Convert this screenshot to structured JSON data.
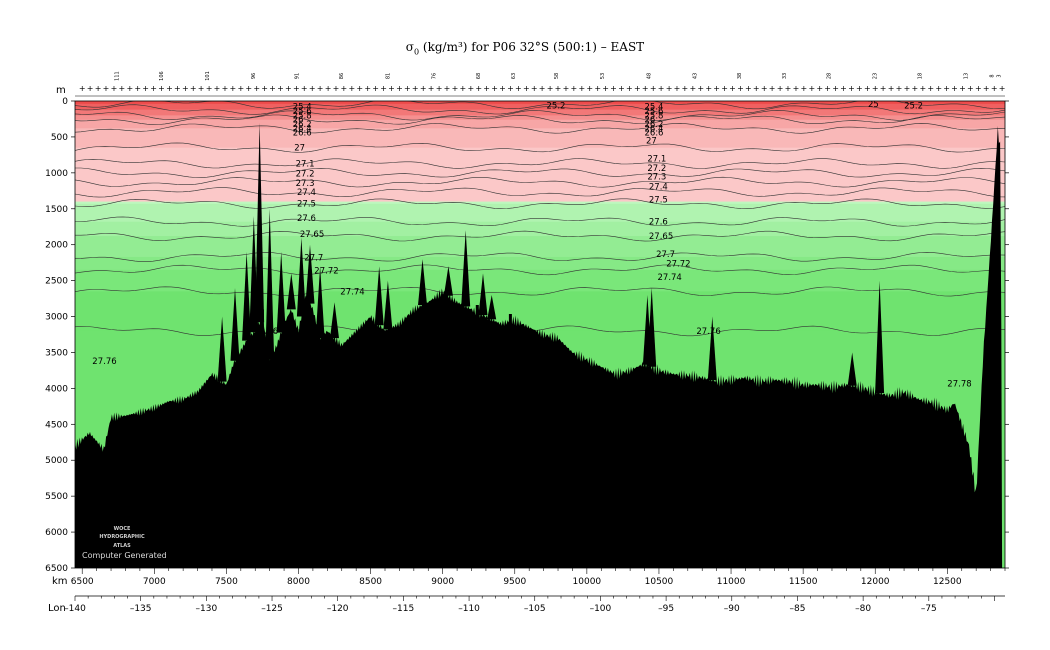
{
  "title": {
    "symbol": "σ",
    "subscript": "0",
    "text": " (kg/m³) for P06 32°S (500:1) – EAST"
  },
  "axis_labels": {
    "depth_unit": "m",
    "distance_unit": "km",
    "longitude_label": "Lon"
  },
  "logo": {
    "lines": [
      "WOCE",
      "HYDROGRAPHIC",
      "ATLAS"
    ],
    "credit": "Computer Generated"
  },
  "colors": {
    "upper_palette": [
      "#ee4b4b",
      "#f06060",
      "#f27878",
      "#f59090",
      "#f7a6a6",
      "#f9b8b8",
      "#fbc8c8"
    ],
    "lower_palette": [
      "#bff7bf",
      "#b0f3b0",
      "#a2f0a2",
      "#93ec93",
      "#86e986",
      "#7ae77a",
      "#6fe36f"
    ],
    "bottom": "#000000",
    "contour": "#333333",
    "station_marker": "#ff0000"
  },
  "chart_data": {
    "type": "heatmap",
    "variable": "sigma-0 potential density section",
    "x": {
      "unit": "km",
      "range": [
        6450,
        12900
      ],
      "ticks": [
        6500,
        7000,
        7500,
        8000,
        8500,
        9000,
        9500,
        10000,
        10500,
        11000,
        11500,
        12000,
        12500
      ]
    },
    "y": {
      "unit": "m",
      "range": [
        0,
        6500
      ],
      "reversed": true,
      "ticks": [
        0,
        500,
        1000,
        1500,
        2000,
        2500,
        3000,
        3500,
        4000,
        4500,
        5000,
        5500,
        6000,
        6500
      ]
    },
    "longitude_axis": {
      "label": "Lon",
      "range": [
        -140,
        -69.2
      ],
      "ticks": [
        -140,
        -135,
        -130,
        -125,
        -120,
        -115,
        -110,
        -105,
        -100,
        -95,
        -90,
        -85,
        -80,
        -75
      ],
      "tick_labels": [
        "–140",
        "–135",
        "–130",
        "–125",
        "–120",
        "–115",
        "–110",
        "–105",
        "–100",
        "–95",
        "–90",
        "–85",
        "–80",
        "–75"
      ]
    },
    "stations": [
      {
        "label": "111",
        "km": 6750
      },
      {
        "label": "106",
        "km": 7060
      },
      {
        "label": "101",
        "km": 7380
      },
      {
        "label": "96",
        "km": 7700
      },
      {
        "label": "91",
        "km": 8000
      },
      {
        "label": "86",
        "km": 8310
      },
      {
        "label": "81",
        "km": 8630
      },
      {
        "label": "76",
        "km": 8950
      },
      {
        "label": "68",
        "km": 9260
      },
      {
        "label": "63",
        "km": 9500
      },
      {
        "label": "58",
        "km": 9800
      },
      {
        "label": "53",
        "km": 10120
      },
      {
        "label": "48",
        "km": 10440
      },
      {
        "label": "43",
        "km": 10760
      },
      {
        "label": "38",
        "km": 11070
      },
      {
        "label": "33",
        "km": 11380
      },
      {
        "label": "28",
        "km": 11690
      },
      {
        "label": "23",
        "km": 12010
      },
      {
        "label": "18",
        "km": 12320
      },
      {
        "label": "13",
        "km": 12640
      },
      {
        "label": "8",
        "km": 12820
      },
      {
        "label": "3",
        "km": 12870
      }
    ],
    "contour_levels": [
      {
        "value": "25.2",
        "depth_m": 40
      },
      {
        "value": "26",
        "depth_m": 120
      },
      {
        "value": "26.4",
        "depth_m": 200
      },
      {
        "value": "26.6",
        "depth_m": 260
      },
      {
        "value": "26.8",
        "depth_m": 380
      },
      {
        "value": "27",
        "depth_m": 650
      },
      {
        "value": "27.1",
        "depth_m": 870
      },
      {
        "value": "27.2",
        "depth_m": 1000
      },
      {
        "value": "27.3",
        "depth_m": 1130
      },
      {
        "value": "27.4",
        "depth_m": 1270
      },
      {
        "value": "27.5",
        "depth_m": 1430
      },
      {
        "value": "27.6",
        "depth_m": 1680
      },
      {
        "value": "27.65",
        "depth_m": 1880
      },
      {
        "value": "27.7",
        "depth_m": 2170
      },
      {
        "value": "27.72",
        "depth_m": 2350
      },
      {
        "value": "27.74",
        "depth_m": 2650
      },
      {
        "value": "27.76",
        "depth_m": 3200
      }
    ],
    "contour_labels": [
      {
        "text": "25.2",
        "km": 9720,
        "depth_m": 60
      },
      {
        "text": "25",
        "km": 11950,
        "depth_m": 40
      },
      {
        "text": "25.2",
        "km": 12200,
        "depth_m": 60
      },
      {
        "text": "25.4",
        "km": 7960,
        "depth_m": 80
      },
      {
        "text": "25.6",
        "km": 7960,
        "depth_m": 140
      },
      {
        "text": "25.8",
        "km": 7960,
        "depth_m": 200
      },
      {
        "text": "26",
        "km": 7960,
        "depth_m": 260
      },
      {
        "text": "26.2",
        "km": 7960,
        "depth_m": 320
      },
      {
        "text": "26.4",
        "km": 7960,
        "depth_m": 380
      },
      {
        "text": "26.6",
        "km": 7960,
        "depth_m": 440
      },
      {
        "text": "25.4",
        "km": 10400,
        "depth_m": 80
      },
      {
        "text": "25.6",
        "km": 10400,
        "depth_m": 140
      },
      {
        "text": "25.8",
        "km": 10400,
        "depth_m": 200
      },
      {
        "text": "26",
        "km": 10400,
        "depth_m": 260
      },
      {
        "text": "26.2",
        "km": 10400,
        "depth_m": 320
      },
      {
        "text": "26.4",
        "km": 10400,
        "depth_m": 380
      },
      {
        "text": "26.6",
        "km": 10400,
        "depth_m": 440
      },
      {
        "text": "27",
        "km": 7970,
        "depth_m": 650
      },
      {
        "text": "27",
        "km": 10410,
        "depth_m": 550
      },
      {
        "text": "27.1",
        "km": 7980,
        "depth_m": 870
      },
      {
        "text": "27.1",
        "km": 10420,
        "depth_m": 800
      },
      {
        "text": "27.2",
        "km": 7980,
        "depth_m": 1010
      },
      {
        "text": "27.2",
        "km": 10420,
        "depth_m": 930
      },
      {
        "text": "27.3",
        "km": 7980,
        "depth_m": 1140
      },
      {
        "text": "27.3",
        "km": 10420,
        "depth_m": 1050
      },
      {
        "text": "27.4",
        "km": 7990,
        "depth_m": 1270
      },
      {
        "text": "27.4",
        "km": 10430,
        "depth_m": 1190
      },
      {
        "text": "27.5",
        "km": 7990,
        "depth_m": 1430
      },
      {
        "text": "27.5",
        "km": 10430,
        "depth_m": 1370
      },
      {
        "text": "27.6",
        "km": 7990,
        "depth_m": 1630
      },
      {
        "text": "27.6",
        "km": 10430,
        "depth_m": 1680
      },
      {
        "text": "27.65",
        "km": 8010,
        "depth_m": 1850
      },
      {
        "text": "27.65",
        "km": 10430,
        "depth_m": 1880
      },
      {
        "text": "27.7",
        "km": 8040,
        "depth_m": 2180
      },
      {
        "text": "27.7",
        "km": 10480,
        "depth_m": 2130
      },
      {
        "text": "27.72",
        "km": 8110,
        "depth_m": 2360
      },
      {
        "text": "27.72",
        "km": 10550,
        "depth_m": 2260
      },
      {
        "text": "27.74",
        "km": 8290,
        "depth_m": 2650
      },
      {
        "text": "27.74",
        "km": 10490,
        "depth_m": 2450
      },
      {
        "text": "27.76",
        "km": 7690,
        "depth_m": 3200
      },
      {
        "text": "27.76",
        "km": 10760,
        "depth_m": 3200
      },
      {
        "text": "27.76",
        "km": 6570,
        "depth_m": 3620
      },
      {
        "text": "27.78",
        "km": 12500,
        "depth_m": 3930
      }
    ],
    "pale_zone_depth_m": [
      1400,
      6500
    ],
    "bathymetry": [
      [
        6450,
        4800
      ],
      [
        6550,
        4620
      ],
      [
        6650,
        4850
      ],
      [
        6700,
        4400
      ],
      [
        6800,
        4380
      ],
      [
        6900,
        4330
      ],
      [
        7000,
        4270
      ],
      [
        7100,
        4180
      ],
      [
        7200,
        4150
      ],
      [
        7300,
        4050
      ],
      [
        7400,
        3800
      ],
      [
        7500,
        3950
      ],
      [
        7550,
        3650
      ],
      [
        7650,
        3300
      ],
      [
        7700,
        3200
      ],
      [
        7750,
        3000
      ],
      [
        7800,
        3600
      ],
      [
        7850,
        3400
      ],
      [
        7900,
        3100
      ],
      [
        7950,
        2900
      ],
      [
        8000,
        3200
      ],
      [
        8050,
        2700
      ],
      [
        8100,
        2900
      ],
      [
        8150,
        3300
      ],
      [
        8200,
        3200
      ],
      [
        8300,
        3400
      ],
      [
        8400,
        3200
      ],
      [
        8500,
        3000
      ],
      [
        8600,
        3200
      ],
      [
        8700,
        3100
      ],
      [
        8800,
        2900
      ],
      [
        8900,
        2800
      ],
      [
        9000,
        2650
      ],
      [
        9100,
        2800
      ],
      [
        9200,
        2900
      ],
      [
        9300,
        3000
      ],
      [
        9400,
        3100
      ],
      [
        9500,
        3050
      ],
      [
        9600,
        3150
      ],
      [
        9700,
        3250
      ],
      [
        9800,
        3300
      ],
      [
        9900,
        3500
      ],
      [
        10000,
        3600
      ],
      [
        10100,
        3700
      ],
      [
        10200,
        3800
      ],
      [
        10300,
        3750
      ],
      [
        10400,
        3650
      ],
      [
        10500,
        3750
      ],
      [
        10600,
        3800
      ],
      [
        10700,
        3820
      ],
      [
        10800,
        3850
      ],
      [
        10900,
        3900
      ],
      [
        11000,
        3880
      ],
      [
        11100,
        3850
      ],
      [
        11200,
        3900
      ],
      [
        11300,
        3880
      ],
      [
        11400,
        3900
      ],
      [
        11500,
        3950
      ],
      [
        11600,
        3950
      ],
      [
        11700,
        3980
      ],
      [
        11800,
        3950
      ],
      [
        11900,
        3980
      ],
      [
        12000,
        4050
      ],
      [
        12100,
        4100
      ],
      [
        12200,
        4050
      ],
      [
        12300,
        4150
      ],
      [
        12400,
        4200
      ],
      [
        12500,
        4300
      ],
      [
        12550,
        4200
      ],
      [
        12600,
        4500
      ],
      [
        12650,
        4800
      ],
      [
        12700,
        5500
      ],
      [
        12750,
        3500
      ],
      [
        12800,
        2000
      ],
      [
        12850,
        400
      ],
      [
        12870,
        700
      ],
      [
        12880,
        6500
      ]
    ],
    "peaks": [
      {
        "km": 7470,
        "depth_m": 3000
      },
      {
        "km": 7560,
        "depth_m": 2600
      },
      {
        "km": 7640,
        "depth_m": 2100
      },
      {
        "km": 7690,
        "depth_m": 1600
      },
      {
        "km": 7730,
        "depth_m": 300
      },
      {
        "km": 7800,
        "depth_m": 1500
      },
      {
        "km": 7880,
        "depth_m": 2100
      },
      {
        "km": 7950,
        "depth_m": 2400
      },
      {
        "km": 8020,
        "depth_m": 1900
      },
      {
        "km": 8080,
        "depth_m": 2000
      },
      {
        "km": 8150,
        "depth_m": 2300
      },
      {
        "km": 8250,
        "depth_m": 2800
      },
      {
        "km": 8560,
        "depth_m": 2300
      },
      {
        "km": 8620,
        "depth_m": 2500
      },
      {
        "km": 8860,
        "depth_m": 2200
      },
      {
        "km": 9040,
        "depth_m": 2300
      },
      {
        "km": 9160,
        "depth_m": 1800
      },
      {
        "km": 9280,
        "depth_m": 2400
      },
      {
        "km": 9340,
        "depth_m": 2700
      },
      {
        "km": 10420,
        "depth_m": 2700
      },
      {
        "km": 10450,
        "depth_m": 2600
      },
      {
        "km": 10870,
        "depth_m": 3000
      },
      {
        "km": 11840,
        "depth_m": 3500
      },
      {
        "km": 12030,
        "depth_m": 2500
      }
    ],
    "troughs": [
      {
        "km": 9240,
        "depth_m": 4400
      },
      {
        "km": 9470,
        "depth_m": 3700
      },
      {
        "km": 7750,
        "depth_m": 4350
      }
    ]
  }
}
